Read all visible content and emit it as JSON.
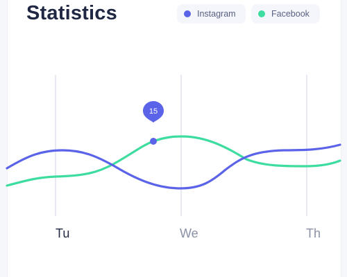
{
  "header": {
    "title": "Statistics"
  },
  "legend": [
    {
      "name": "Instagram",
      "color": "#5b63e8"
    },
    {
      "name": "Facebook",
      "color": "#3ddc9f"
    }
  ],
  "chart_data": {
    "type": "line",
    "categories": [
      "Tu",
      "We",
      "Th"
    ],
    "active_category": "Tu",
    "series": [
      {
        "name": "Instagram",
        "color": "#5b63e8"
      },
      {
        "name": "Facebook",
        "color": "#3ddc9f"
      }
    ],
    "marker": {
      "series": "Instagram",
      "value": 15
    }
  },
  "colors": {
    "title": "#1f2743",
    "axis_label_active": "#1f2743",
    "axis_label_inactive": "#8a90a6",
    "gridline": "#dfe3ee",
    "legend_bg": "#f5f6fb"
  }
}
